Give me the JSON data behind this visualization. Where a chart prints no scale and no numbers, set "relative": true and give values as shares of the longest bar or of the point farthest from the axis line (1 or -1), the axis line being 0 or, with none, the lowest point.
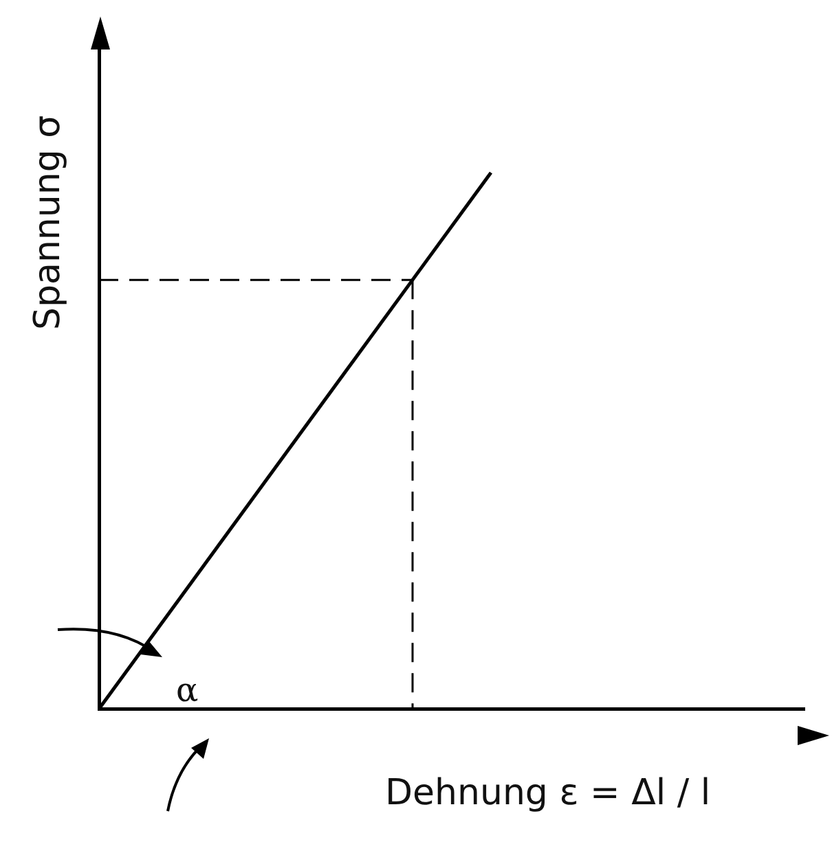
{
  "chart_data": {
    "type": "line",
    "relative": true,
    "xlabel": "Dehnung ε = Δl / l",
    "ylabel": "Spannung σ",
    "categories": [
      null,
      null,
      null,
      null,
      null,
      null,
      null,
      null,
      null,
      null
    ],
    "series": [
      {
        "color": "#000000",
        "values": [
          0,
          null,
          null,
          null,
          0.8,
          1,
          null,
          null,
          null,
          null
        ]
      }
    ],
    "ref_lines": [
      {
        "axis": "y",
        "value": 0.8,
        "line_style": "dashed",
        "color": "#000000"
      }
    ],
    "annotations": [
      {
        "text": "α"
      }
    ],
    "grid": false,
    "legend": false,
    "marker": "none",
    "line_style": "solid"
  }
}
